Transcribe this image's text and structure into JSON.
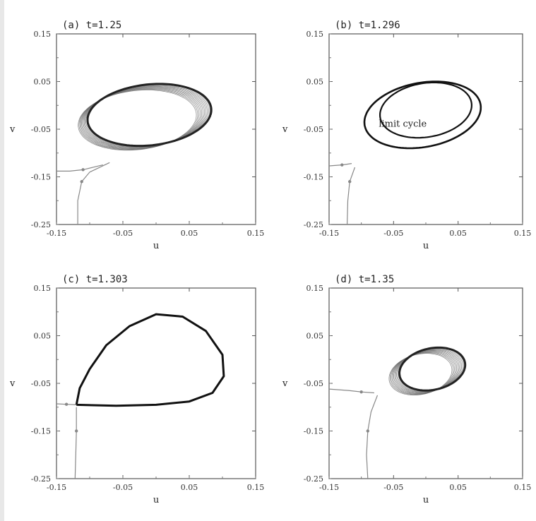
{
  "chart_data": [
    {
      "type": "line",
      "title": "(a) t=1.25",
      "xlabel": "u",
      "ylabel": "v",
      "xlim": [
        -0.15,
        0.15
      ],
      "ylim": [
        -0.25,
        0.15
      ],
      "xticks": [
        "-0.15",
        "-0.05",
        "0.05",
        "0.15"
      ],
      "yticks": [
        "0.15",
        "0.05",
        "-0.05",
        "-0.15",
        "-0.25"
      ],
      "grid": false,
      "behavior": "trajectories spiral outward onto a large closed orbit",
      "series": [
        {
          "role": "limit-orbit",
          "center": [
            -0.01,
            -0.02
          ],
          "rx": 0.092,
          "ry": 0.065,
          "x_skew": 0.03
        },
        {
          "role": "spiral",
          "turns": 12
        },
        {
          "role": "incoming-trajectory",
          "points": [
            [
              -0.118,
              -0.25
            ],
            [
              -0.118,
              -0.2
            ],
            [
              -0.112,
              -0.16
            ],
            [
              -0.1,
              -0.14
            ],
            [
              -0.07,
              -0.12
            ]
          ]
        },
        {
          "role": "incoming-trajectory",
          "points": [
            [
              -0.15,
              -0.138
            ],
            [
              -0.13,
              -0.138
            ],
            [
              -0.11,
              -0.135
            ],
            [
              -0.08,
              -0.125
            ]
          ]
        }
      ]
    },
    {
      "type": "line",
      "title": "(b) t=1.296",
      "xlabel": "u",
      "ylabel": "v",
      "xlim": [
        -0.15,
        0.15
      ],
      "ylim": [
        -0.25,
        0.15
      ],
      "xticks": [
        "-0.15",
        "-0.05",
        "0.05",
        "0.15"
      ],
      "yticks": [
        "0.15",
        "0.05",
        "-0.05",
        "-0.15",
        "-0.25"
      ],
      "grid": false,
      "annotation": "limit cycle",
      "series": [
        {
          "role": "limit-cycle",
          "center": [
            0.0,
            -0.01
          ],
          "rx": 0.07,
          "ry": 0.058,
          "x_skew": 0.025
        },
        {
          "role": "orbit",
          "center": [
            -0.005,
            -0.02
          ],
          "rx": 0.088,
          "ry": 0.07,
          "x_skew": 0.04
        },
        {
          "role": "incoming-trajectory",
          "points": [
            [
              -0.122,
              -0.25
            ],
            [
              -0.121,
              -0.2
            ],
            [
              -0.118,
              -0.16
            ],
            [
              -0.11,
              -0.13
            ]
          ]
        },
        {
          "role": "incoming-trajectory",
          "points": [
            [
              -0.15,
              -0.127
            ],
            [
              -0.13,
              -0.125
            ],
            [
              -0.115,
              -0.122
            ]
          ]
        }
      ]
    },
    {
      "type": "line",
      "title": "(c) t=1.303",
      "xlabel": "u",
      "ylabel": "v",
      "xlim": [
        -0.15,
        0.15
      ],
      "ylim": [
        -0.25,
        0.15
      ],
      "xticks": [
        "-0.15",
        "-0.05",
        "0.05",
        "0.15"
      ],
      "yticks": [
        "0.15",
        "0.05",
        "-0.05",
        "-0.15",
        "-0.25"
      ],
      "grid": false,
      "behavior": "homoclinic-type loop through a saddle near (-0.12, -0.095)",
      "series": [
        {
          "role": "loop",
          "points": [
            [
              -0.12,
              -0.095
            ],
            [
              -0.115,
              -0.06
            ],
            [
              -0.1,
              -0.02
            ],
            [
              -0.075,
              0.03
            ],
            [
              -0.04,
              0.07
            ],
            [
              0.0,
              0.095
            ],
            [
              0.04,
              0.09
            ],
            [
              0.075,
              0.06
            ],
            [
              0.1,
              0.01
            ],
            [
              0.102,
              -0.035
            ],
            [
              0.085,
              -0.07
            ],
            [
              0.05,
              -0.088
            ],
            [
              0.0,
              -0.095
            ],
            [
              -0.06,
              -0.097
            ],
            [
              -0.12,
              -0.095
            ]
          ]
        },
        {
          "role": "incoming-trajectory",
          "points": [
            [
              -0.122,
              -0.25
            ],
            [
              -0.121,
              -0.2
            ],
            [
              -0.12,
              -0.15
            ],
            [
              -0.12,
              -0.1
            ]
          ]
        },
        {
          "role": "incoming-trajectory",
          "points": [
            [
              -0.15,
              -0.093
            ],
            [
              -0.135,
              -0.094
            ],
            [
              -0.12,
              -0.095
            ]
          ]
        }
      ]
    },
    {
      "type": "line",
      "title": "(d) t=1.35",
      "xlabel": "u",
      "ylabel": "v",
      "xlim": [
        -0.15,
        0.15
      ],
      "ylim": [
        -0.25,
        0.15
      ],
      "xticks": [
        "-0.15",
        "-0.05",
        "0.05",
        "0.15"
      ],
      "yticks": [
        "0.15",
        "0.05",
        "-0.05",
        "-0.15",
        "-0.25"
      ],
      "grid": false,
      "behavior": "trajectories spiral onto a smaller closed orbit",
      "series": [
        {
          "role": "limit-orbit",
          "center": [
            0.01,
            -0.02
          ],
          "rx": 0.05,
          "ry": 0.045,
          "x_skew": 0.02
        },
        {
          "role": "spiral",
          "turns": 12
        },
        {
          "role": "incoming-trajectory",
          "points": [
            [
              -0.09,
              -0.25
            ],
            [
              -0.092,
              -0.2
            ],
            [
              -0.09,
              -0.15
            ],
            [
              -0.085,
              -0.11
            ],
            [
              -0.075,
              -0.075
            ]
          ]
        },
        {
          "role": "incoming-trajectory",
          "points": [
            [
              -0.15,
              -0.062
            ],
            [
              -0.12,
              -0.065
            ],
            [
              -0.1,
              -0.068
            ],
            [
              -0.08,
              -0.07
            ]
          ]
        }
      ]
    }
  ]
}
